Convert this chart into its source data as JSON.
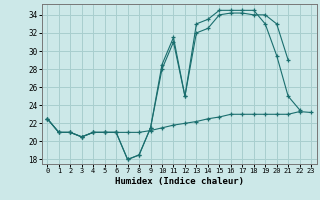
{
  "xlabel": "Humidex (Indice chaleur)",
  "ylabel": "",
  "bg_color": "#cce8e8",
  "grid_color": "#a8cece",
  "line_color": "#1a6e6e",
  "xlim": [
    -0.5,
    23.5
  ],
  "ylim": [
    17.5,
    35.2
  ],
  "xticks": [
    0,
    1,
    2,
    3,
    4,
    5,
    6,
    7,
    8,
    9,
    10,
    11,
    12,
    13,
    14,
    15,
    16,
    17,
    18,
    19,
    20,
    21,
    22,
    23
  ],
  "yticks": [
    18,
    20,
    22,
    24,
    26,
    28,
    30,
    32,
    34
  ],
  "line1_x": [
    0,
    1,
    2,
    3,
    4,
    5,
    6,
    7,
    8,
    9,
    10,
    11,
    12,
    13,
    14,
    15,
    16,
    17,
    18,
    19,
    20,
    21,
    22
  ],
  "line1_y": [
    22.5,
    21.0,
    21.0,
    20.5,
    21.0,
    21.0,
    21.0,
    18.0,
    18.5,
    21.5,
    28.5,
    31.5,
    25.0,
    33.0,
    33.5,
    34.5,
    34.5,
    34.5,
    34.5,
    33.0,
    29.5,
    25.0,
    23.5
  ],
  "line2_x": [
    0,
    1,
    2,
    3,
    4,
    5,
    6,
    7,
    8,
    9,
    10,
    11,
    12,
    13,
    14,
    15,
    16,
    17,
    18,
    19,
    20,
    21
  ],
  "line2_y": [
    22.5,
    21.0,
    21.0,
    20.5,
    21.0,
    21.0,
    21.0,
    18.0,
    18.5,
    21.5,
    28.0,
    31.0,
    25.0,
    32.0,
    32.5,
    34.0,
    34.2,
    34.2,
    34.0,
    34.0,
    33.0,
    29.0
  ],
  "line3_x": [
    0,
    1,
    2,
    3,
    4,
    5,
    6,
    7,
    8,
    9,
    10,
    11,
    12,
    13,
    14,
    15,
    16,
    17,
    18,
    19,
    20,
    21,
    22,
    23
  ],
  "line3_y": [
    22.5,
    21.0,
    21.0,
    20.5,
    21.0,
    21.0,
    21.0,
    21.0,
    21.0,
    21.2,
    21.5,
    21.8,
    22.0,
    22.2,
    22.5,
    22.7,
    23.0,
    23.0,
    23.0,
    23.0,
    23.0,
    23.0,
    23.3,
    23.2
  ]
}
